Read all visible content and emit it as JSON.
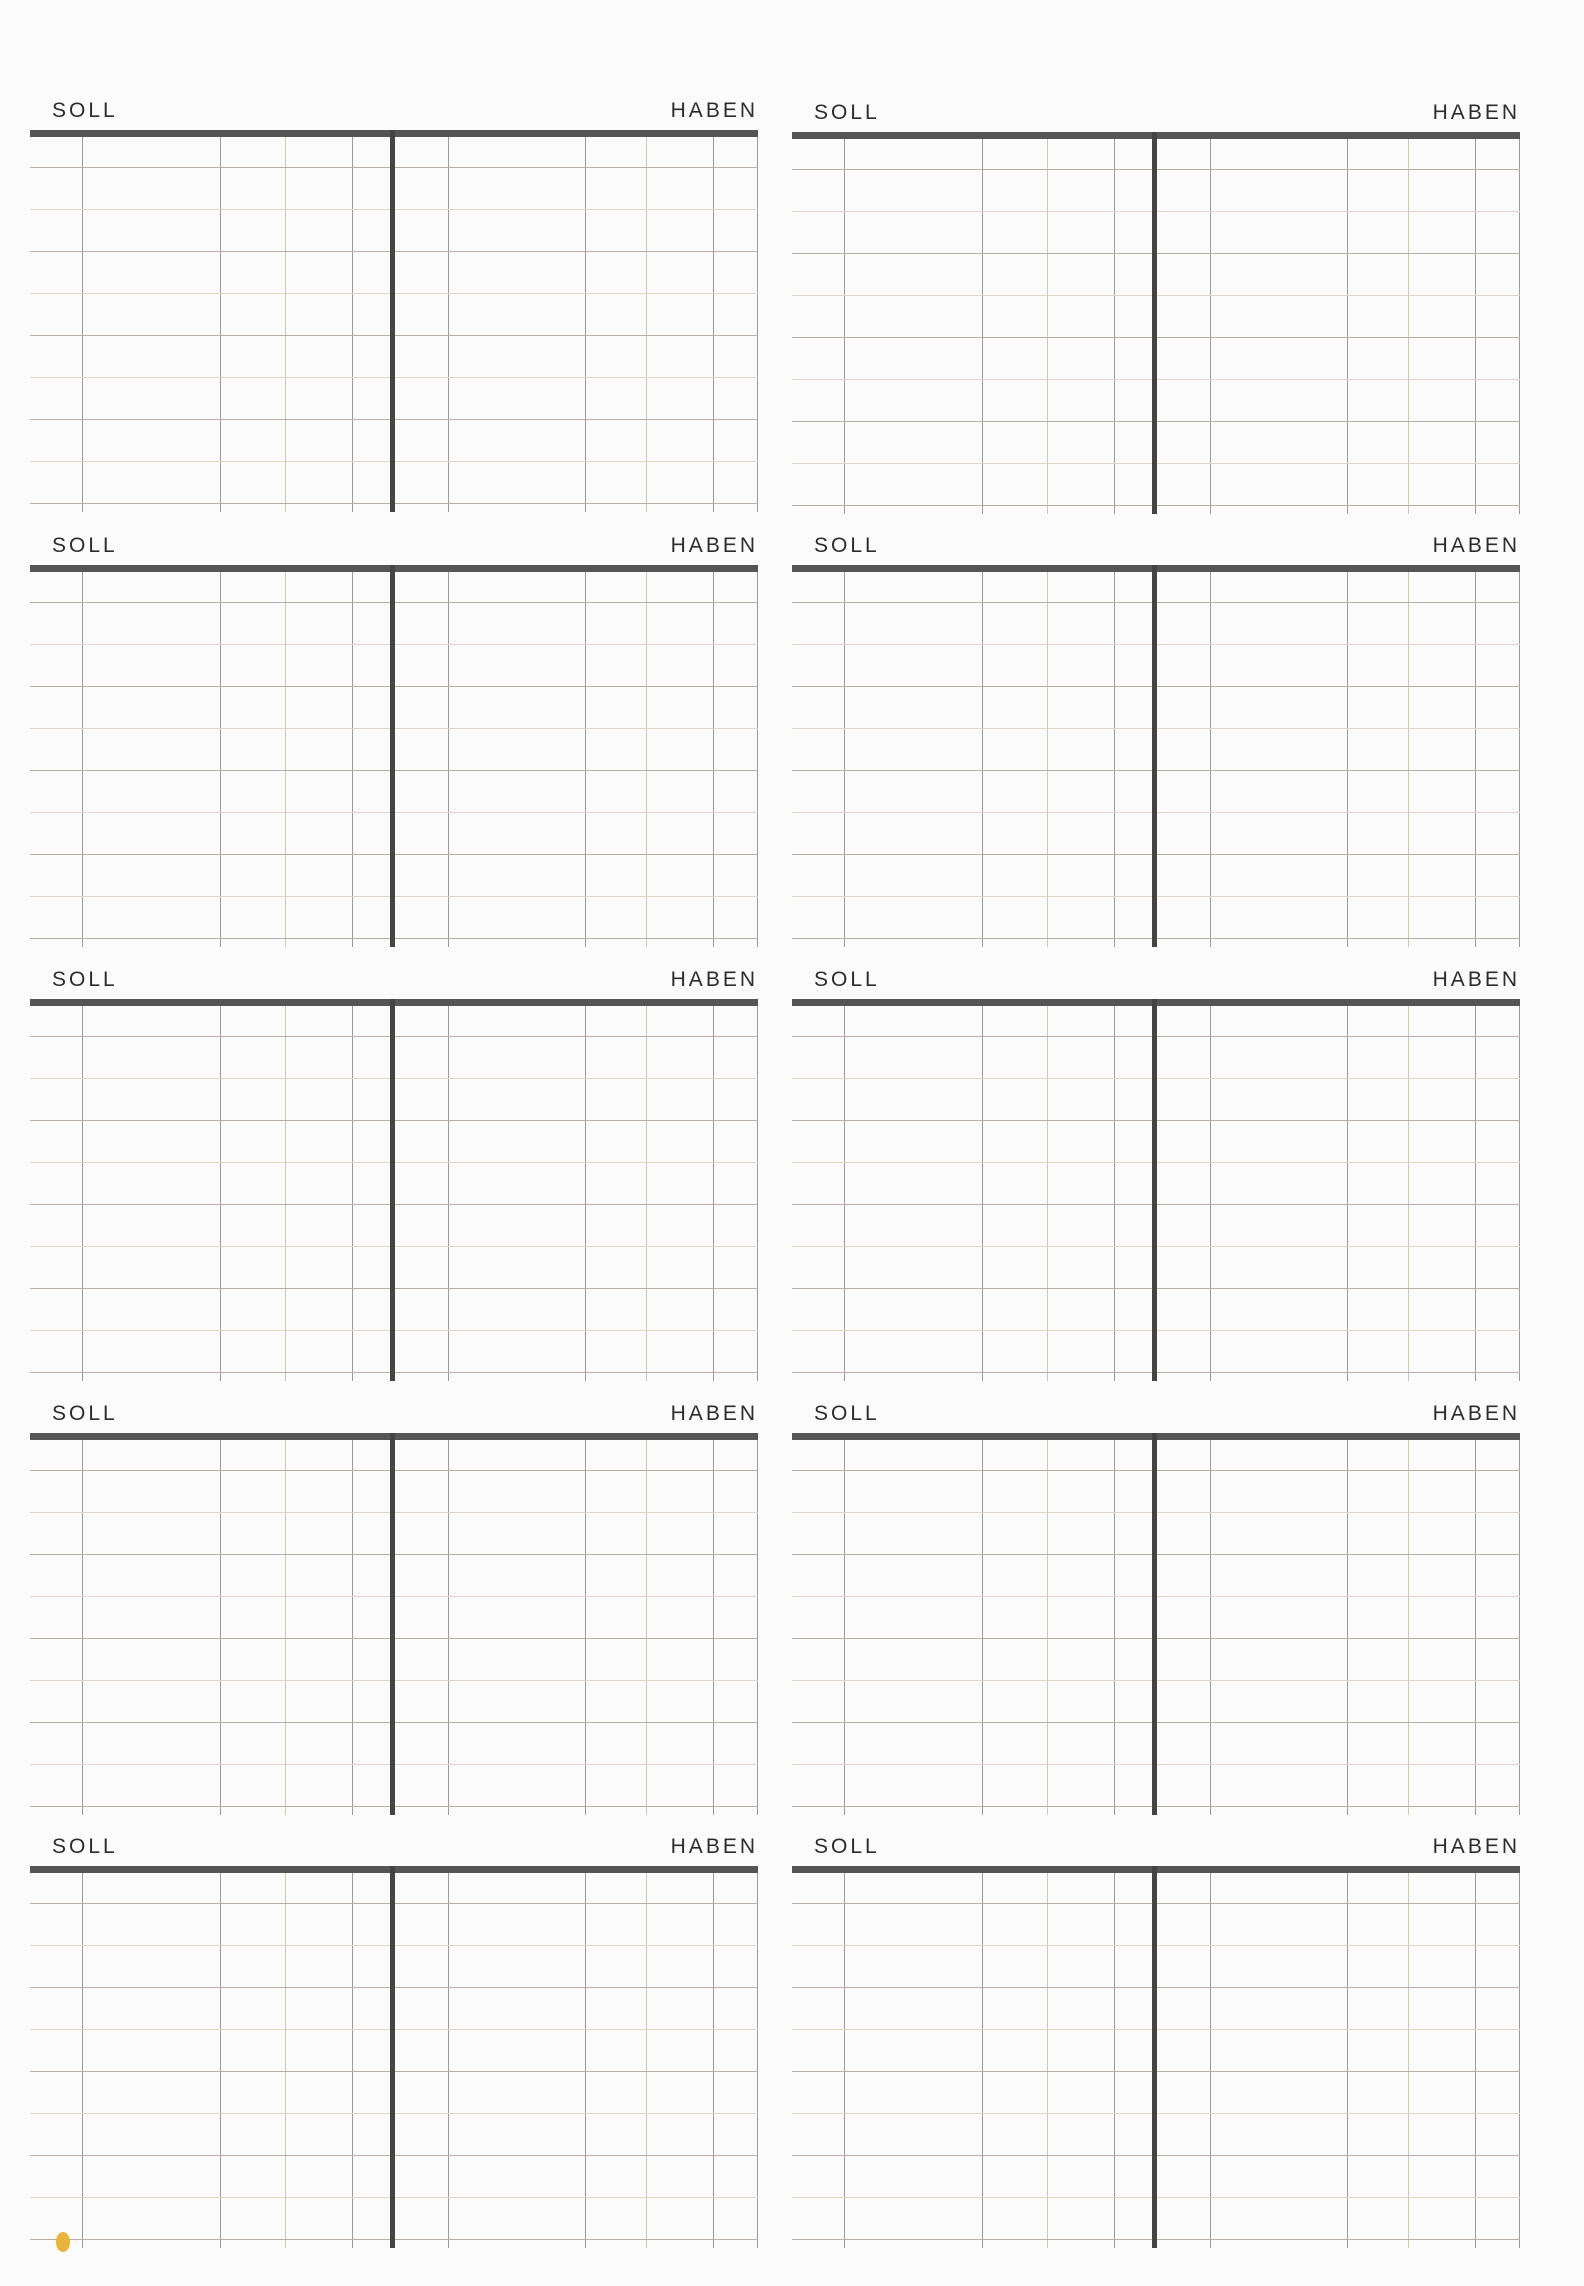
{
  "accounts": [
    {
      "soll": "SOLL",
      "haben": "HABEN"
    },
    {
      "soll": "SOLL",
      "haben": "HABEN"
    },
    {
      "soll": "SOLL",
      "haben": "HABEN"
    },
    {
      "soll": "SOLL",
      "haben": "HABEN"
    },
    {
      "soll": "SOLL",
      "haben": "HABEN"
    },
    {
      "soll": "SOLL",
      "haben": "HABEN"
    },
    {
      "soll": "SOLL",
      "haben": "HABEN"
    },
    {
      "soll": "SOLL",
      "haben": "HABEN"
    },
    {
      "soll": "SOLL",
      "haben": "HABEN"
    },
    {
      "soll": "SOLL",
      "haben": "HABEN"
    }
  ],
  "colors": {
    "paper": "#fbfbfb",
    "rule": "#555555",
    "grid": "#9a9a9a",
    "stain": "#e8b43a"
  }
}
